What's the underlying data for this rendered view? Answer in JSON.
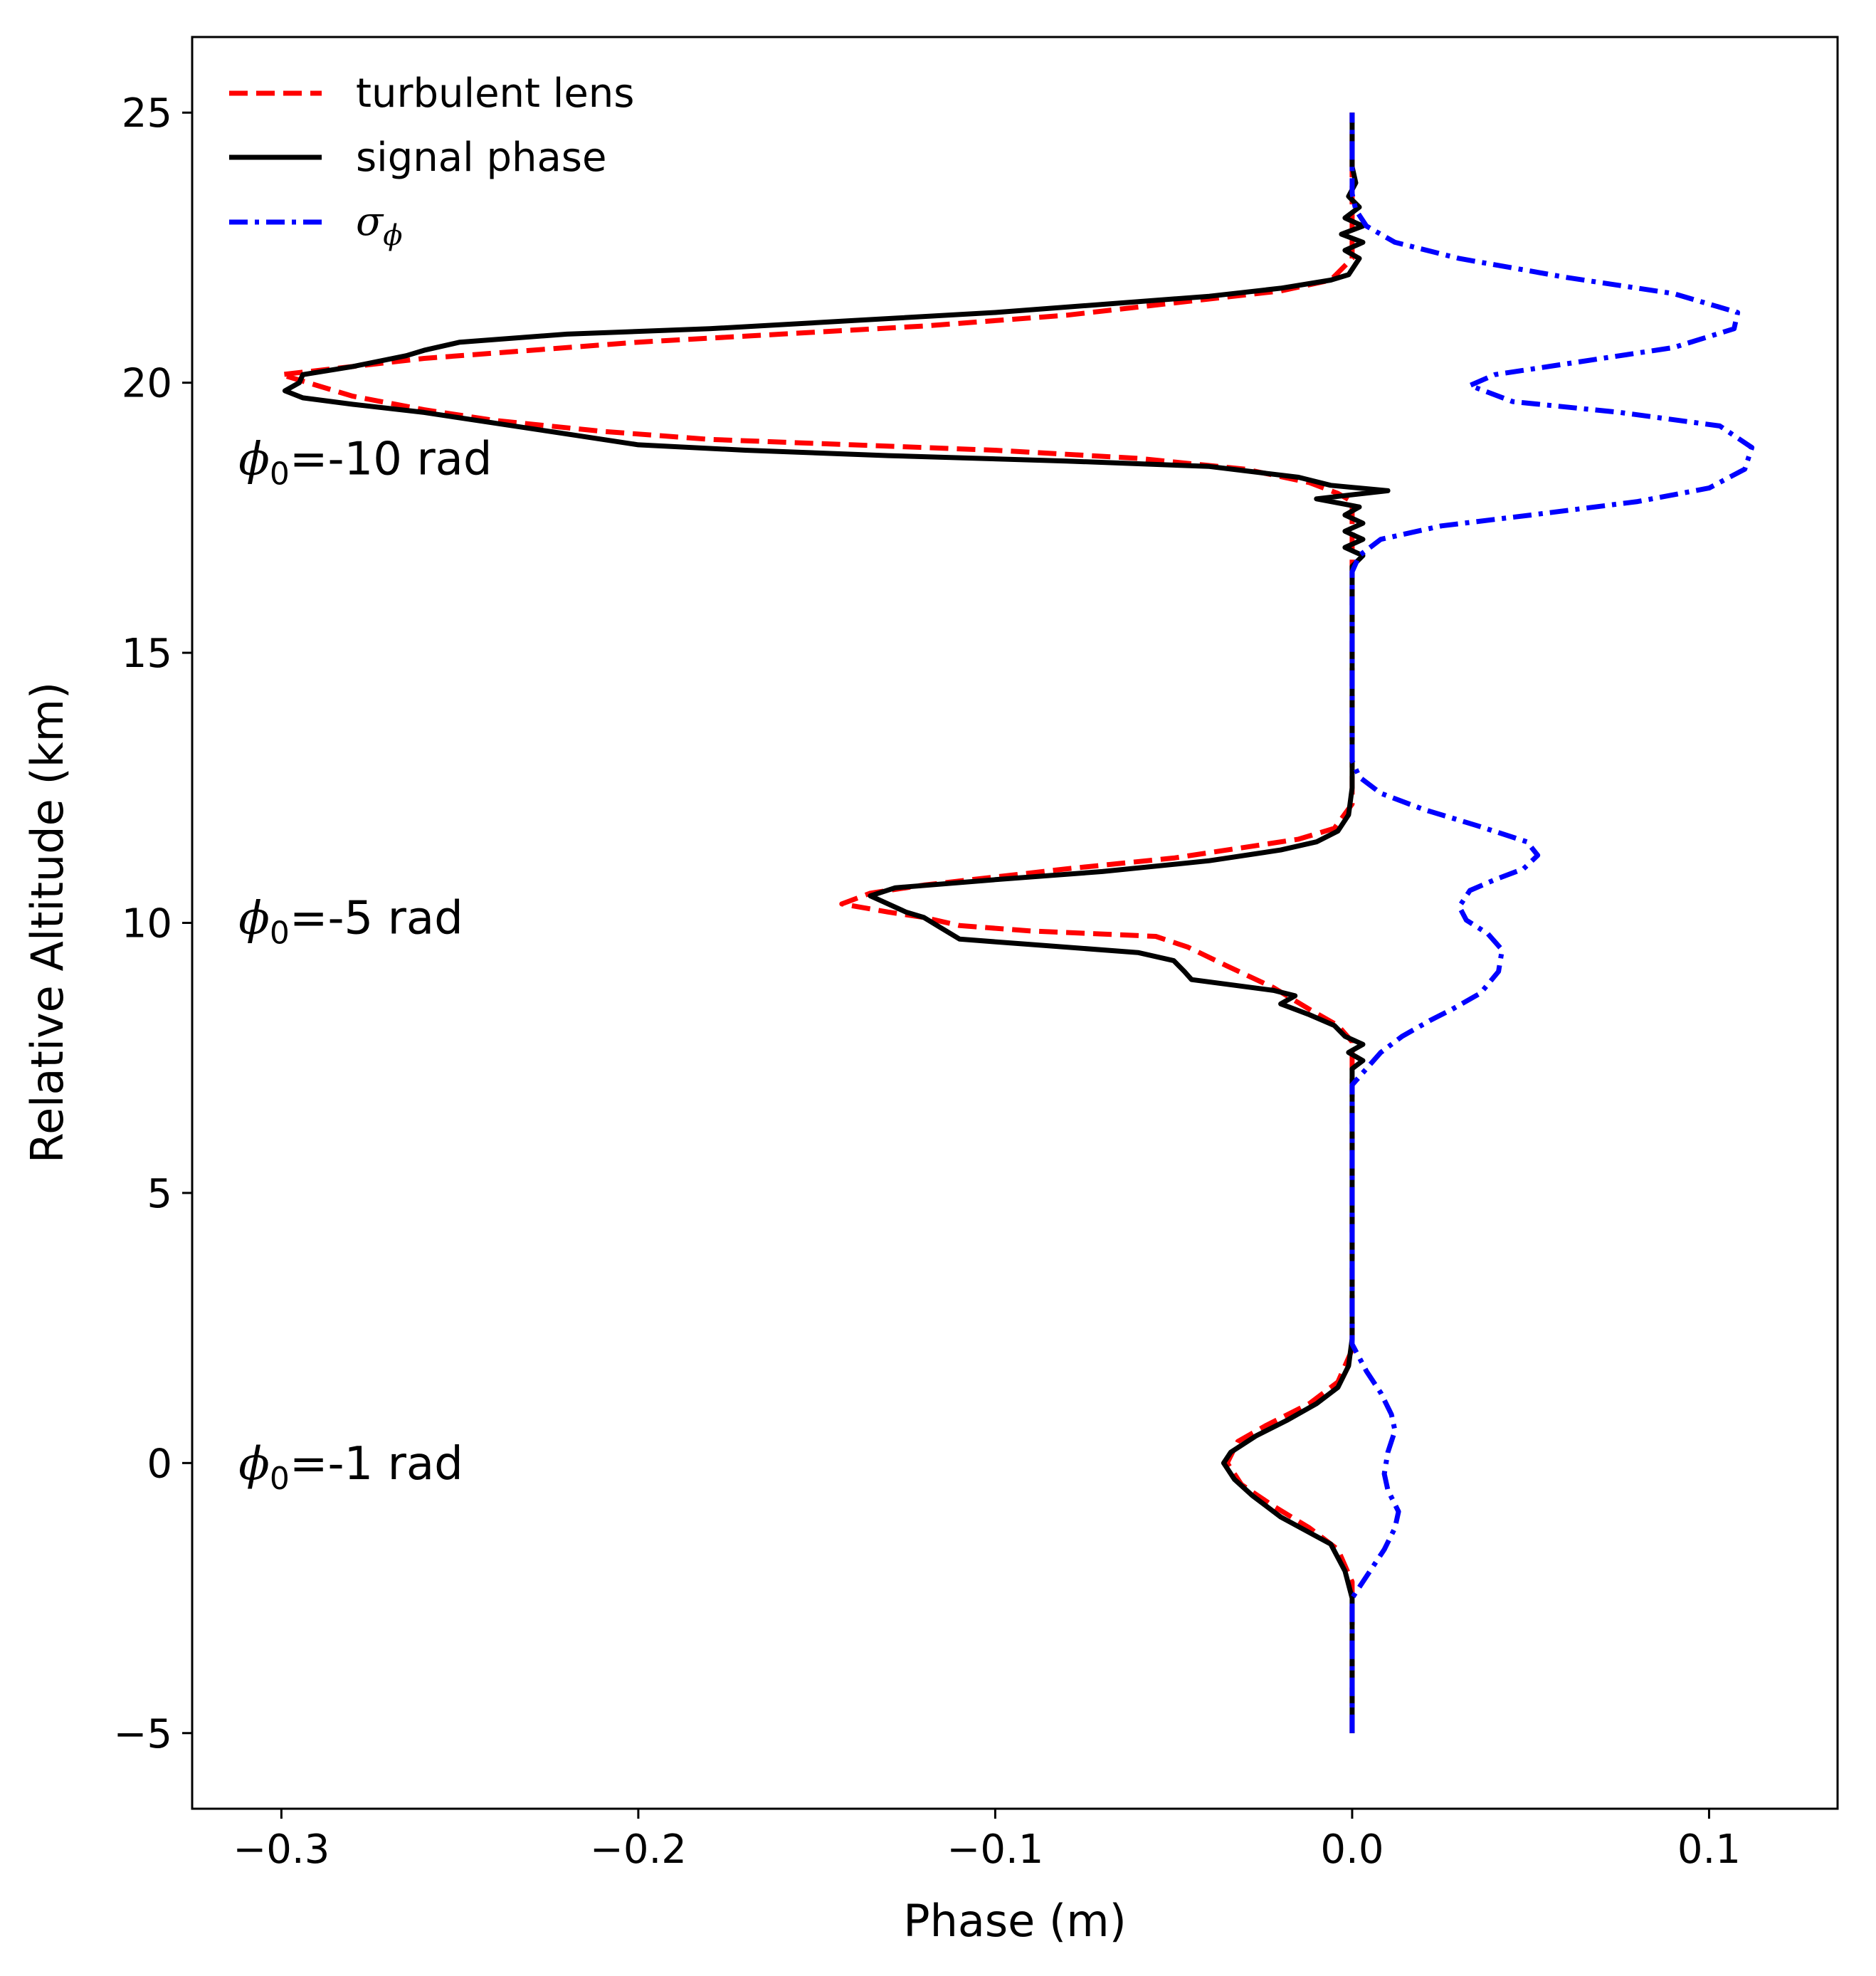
{
  "chart_data": {
    "type": "line",
    "title": "",
    "xlabel": "Phase (m)",
    "ylabel": "Relative Altitude (km)",
    "xlim": [
      -0.325,
      0.136
    ],
    "ylim": [
      -6.4,
      26.4
    ],
    "xticks": [
      -0.3,
      -0.2,
      -0.1,
      0.0,
      0.1
    ],
    "xtick_labels": [
      "−0.3",
      "−0.2",
      "−0.1",
      "0.0",
      "0.1"
    ],
    "yticks": [
      -5,
      0,
      5,
      10,
      15,
      20,
      25
    ],
    "ytick_labels": [
      "−5",
      "0",
      "5",
      "10",
      "15",
      "20",
      "25"
    ],
    "grid": false,
    "legend_position": "top-left",
    "legend": [
      {
        "label": "turbulent lens",
        "color": "#ff0000",
        "style": "dashed"
      },
      {
        "label": "signal phase",
        "color": "#000000",
        "style": "solid"
      },
      {
        "label_symbol": "σ",
        "label_subscript": "ϕ",
        "color": "#0000ff",
        "style": "dashdot"
      }
    ],
    "annotations": [
      {
        "symbol": "ϕ",
        "subscript": "0",
        "text": "=-10 rad",
        "x": -0.312,
        "y": 18.3
      },
      {
        "symbol": "ϕ",
        "subscript": "0",
        "text": "=-5 rad",
        "x": -0.312,
        "y": 9.8
      },
      {
        "symbol": "ϕ",
        "subscript": "0",
        "text": "=-1 rad",
        "x": -0.312,
        "y": -0.3
      }
    ],
    "series": [
      {
        "name": "turbulent lens",
        "color": "#ff0000",
        "style": "dashed",
        "points": [
          [
            0,
            -5
          ],
          [
            0,
            -2.2
          ],
          [
            -0.004,
            -1.6
          ],
          [
            -0.012,
            -1.2
          ],
          [
            -0.022,
            -0.8
          ],
          [
            -0.031,
            -0.4
          ],
          [
            -0.035,
            0
          ],
          [
            -0.032,
            0.4
          ],
          [
            -0.024,
            0.7
          ],
          [
            -0.012,
            1.1
          ],
          [
            -0.004,
            1.5
          ],
          [
            0,
            2.1
          ],
          [
            0,
            7.8
          ],
          [
            -0.004,
            8.1
          ],
          [
            -0.012,
            8.4
          ],
          [
            -0.022,
            8.8
          ],
          [
            -0.035,
            9.2
          ],
          [
            -0.046,
            9.55
          ],
          [
            -0.055,
            9.75
          ],
          [
            -0.072,
            9.8
          ],
          [
            -0.09,
            9.85
          ],
          [
            -0.11,
            9.95
          ],
          [
            -0.12,
            10.1
          ],
          [
            -0.13,
            10.2
          ],
          [
            -0.143,
            10.35
          ],
          [
            -0.135,
            10.55
          ],
          [
            -0.12,
            10.7
          ],
          [
            -0.1,
            10.85
          ],
          [
            -0.08,
            11.0
          ],
          [
            -0.05,
            11.2
          ],
          [
            -0.03,
            11.4
          ],
          [
            -0.015,
            11.55
          ],
          [
            -0.005,
            11.75
          ],
          [
            0,
            12.2
          ],
          [
            0,
            17.8
          ],
          [
            -0.004,
            17.95
          ],
          [
            -0.012,
            18.15
          ],
          [
            -0.03,
            18.4
          ],
          [
            -0.06,
            18.6
          ],
          [
            -0.1,
            18.75
          ],
          [
            -0.14,
            18.85
          ],
          [
            -0.18,
            18.95
          ],
          [
            -0.21,
            19.1
          ],
          [
            -0.24,
            19.3
          ],
          [
            -0.26,
            19.5
          ],
          [
            -0.28,
            19.75
          ],
          [
            -0.29,
            19.95
          ],
          [
            -0.3,
            20.15
          ],
          [
            -0.28,
            20.3
          ],
          [
            -0.26,
            20.45
          ],
          [
            -0.23,
            20.6
          ],
          [
            -0.2,
            20.75
          ],
          [
            -0.16,
            20.9
          ],
          [
            -0.12,
            21.05
          ],
          [
            -0.1,
            21.15
          ],
          [
            -0.08,
            21.25
          ],
          [
            -0.06,
            21.4
          ],
          [
            -0.04,
            21.55
          ],
          [
            -0.02,
            21.7
          ],
          [
            -0.006,
            21.9
          ],
          [
            0,
            22.3
          ],
          [
            0,
            25
          ]
        ]
      },
      {
        "name": "signal phase",
        "color": "#000000",
        "style": "solid",
        "points": [
          [
            0,
            -5
          ],
          [
            0,
            -2.5
          ],
          [
            -0.002,
            -2.0
          ],
          [
            -0.006,
            -1.5
          ],
          [
            -0.013,
            -1.25
          ],
          [
            -0.02,
            -1.0
          ],
          [
            -0.028,
            -0.6
          ],
          [
            -0.033,
            -0.3
          ],
          [
            -0.036,
            0
          ],
          [
            -0.034,
            0.2
          ],
          [
            -0.027,
            0.5
          ],
          [
            -0.018,
            0.8
          ],
          [
            -0.01,
            1.1
          ],
          [
            -0.004,
            1.4
          ],
          [
            -0.001,
            1.8
          ],
          [
            0,
            2.3
          ],
          [
            0,
            7.3
          ],
          [
            0.003,
            7.45
          ],
          [
            -0.001,
            7.6
          ],
          [
            0.003,
            7.75
          ],
          [
            -0.002,
            7.9
          ],
          [
            -0.005,
            8.1
          ],
          [
            -0.012,
            8.3
          ],
          [
            -0.02,
            8.5
          ],
          [
            -0.016,
            8.65
          ],
          [
            -0.022,
            8.75
          ],
          [
            -0.045,
            8.95
          ],
          [
            -0.047,
            9.1
          ],
          [
            -0.05,
            9.3
          ],
          [
            -0.06,
            9.45
          ],
          [
            -0.09,
            9.6
          ],
          [
            -0.1,
            9.65
          ],
          [
            -0.11,
            9.7
          ],
          [
            -0.115,
            9.9
          ],
          [
            -0.12,
            10.1
          ],
          [
            -0.125,
            10.2
          ],
          [
            -0.13,
            10.35
          ],
          [
            -0.135,
            10.5
          ],
          [
            -0.128,
            10.65
          ],
          [
            -0.1,
            10.8
          ],
          [
            -0.07,
            10.95
          ],
          [
            -0.04,
            11.15
          ],
          [
            -0.02,
            11.35
          ],
          [
            -0.01,
            11.5
          ],
          [
            -0.004,
            11.7
          ],
          [
            -0.001,
            12.0
          ],
          [
            0,
            12.5
          ],
          [
            0,
            16.6
          ],
          [
            0.003,
            16.8
          ],
          [
            -0.002,
            16.95
          ],
          [
            0.003,
            17.1
          ],
          [
            -0.002,
            17.25
          ],
          [
            0.003,
            17.4
          ],
          [
            -0.002,
            17.55
          ],
          [
            0.002,
            17.7
          ],
          [
            -0.01,
            17.85
          ],
          [
            0.01,
            18.0
          ],
          [
            -0.006,
            18.1
          ],
          [
            -0.015,
            18.25
          ],
          [
            -0.04,
            18.45
          ],
          [
            -0.08,
            18.55
          ],
          [
            -0.13,
            18.65
          ],
          [
            -0.17,
            18.75
          ],
          [
            -0.2,
            18.85
          ],
          [
            -0.22,
            19.05
          ],
          [
            -0.24,
            19.25
          ],
          [
            -0.26,
            19.45
          ],
          [
            -0.28,
            19.6
          ],
          [
            -0.294,
            19.72
          ],
          [
            -0.299,
            19.85
          ],
          [
            -0.295,
            20.0
          ],
          [
            -0.294,
            20.15
          ],
          [
            -0.28,
            20.3
          ],
          [
            -0.265,
            20.5
          ],
          [
            -0.26,
            20.6
          ],
          [
            -0.25,
            20.75
          ],
          [
            -0.22,
            20.9
          ],
          [
            -0.18,
            21.0
          ],
          [
            -0.14,
            21.15
          ],
          [
            -0.1,
            21.3
          ],
          [
            -0.07,
            21.45
          ],
          [
            -0.04,
            21.6
          ],
          [
            -0.02,
            21.75
          ],
          [
            -0.006,
            21.9
          ],
          [
            -0.001,
            22.0
          ],
          [
            0.002,
            22.3
          ],
          [
            -0.002,
            22.45
          ],
          [
            0.003,
            22.6
          ],
          [
            -0.003,
            22.75
          ],
          [
            0.003,
            22.9
          ],
          [
            -0.002,
            23.05
          ],
          [
            0.002,
            23.25
          ],
          [
            -0.001,
            23.45
          ],
          [
            0.001,
            23.7
          ],
          [
            0,
            24.0
          ],
          [
            0,
            25
          ]
        ]
      },
      {
        "name": "sigma_phi",
        "color": "#0000ff",
        "style": "dashdot",
        "points": [
          [
            0,
            -5
          ],
          [
            0,
            -2.5
          ],
          [
            0.004,
            -2.1
          ],
          [
            0.009,
            -1.6
          ],
          [
            0.012,
            -1.2
          ],
          [
            0.013,
            -0.9
          ],
          [
            0.01,
            -0.5
          ],
          [
            0.009,
            -0.2
          ],
          [
            0.01,
            0.2
          ],
          [
            0.012,
            0.6
          ],
          [
            0.011,
            0.9
          ],
          [
            0.008,
            1.3
          ],
          [
            0.004,
            1.7
          ],
          [
            0,
            2.2
          ],
          [
            0,
            7.0
          ],
          [
            0.004,
            7.3
          ],
          [
            0.008,
            7.6
          ],
          [
            0.014,
            7.9
          ],
          [
            0.022,
            8.2
          ],
          [
            0.028,
            8.4
          ],
          [
            0.036,
            8.7
          ],
          [
            0.041,
            9.1
          ],
          [
            0.042,
            9.5
          ],
          [
            0.038,
            9.8
          ],
          [
            0.032,
            10.05
          ],
          [
            0.03,
            10.3
          ],
          [
            0.033,
            10.6
          ],
          [
            0.04,
            10.8
          ],
          [
            0.048,
            11.0
          ],
          [
            0.052,
            11.25
          ],
          [
            0.049,
            11.5
          ],
          [
            0.035,
            11.8
          ],
          [
            0.02,
            12.1
          ],
          [
            0.008,
            12.4
          ],
          [
            0.002,
            12.7
          ],
          [
            0,
            13.0
          ],
          [
            0,
            16.5
          ],
          [
            0.002,
            16.8
          ],
          [
            0.008,
            17.1
          ],
          [
            0.025,
            17.35
          ],
          [
            0.05,
            17.55
          ],
          [
            0.08,
            17.8
          ],
          [
            0.1,
            18.05
          ],
          [
            0.11,
            18.4
          ],
          [
            0.112,
            18.8
          ],
          [
            0.103,
            19.2
          ],
          [
            0.075,
            19.45
          ],
          [
            0.045,
            19.65
          ],
          [
            0.033,
            19.95
          ],
          [
            0.04,
            20.15
          ],
          [
            0.06,
            20.35
          ],
          [
            0.09,
            20.65
          ],
          [
            0.107,
            21.0
          ],
          [
            0.108,
            21.3
          ],
          [
            0.09,
            21.65
          ],
          [
            0.06,
            21.95
          ],
          [
            0.03,
            22.3
          ],
          [
            0.012,
            22.6
          ],
          [
            0.004,
            22.9
          ],
          [
            0.001,
            23.2
          ],
          [
            0,
            23.5
          ],
          [
            0,
            25
          ]
        ]
      }
    ]
  }
}
